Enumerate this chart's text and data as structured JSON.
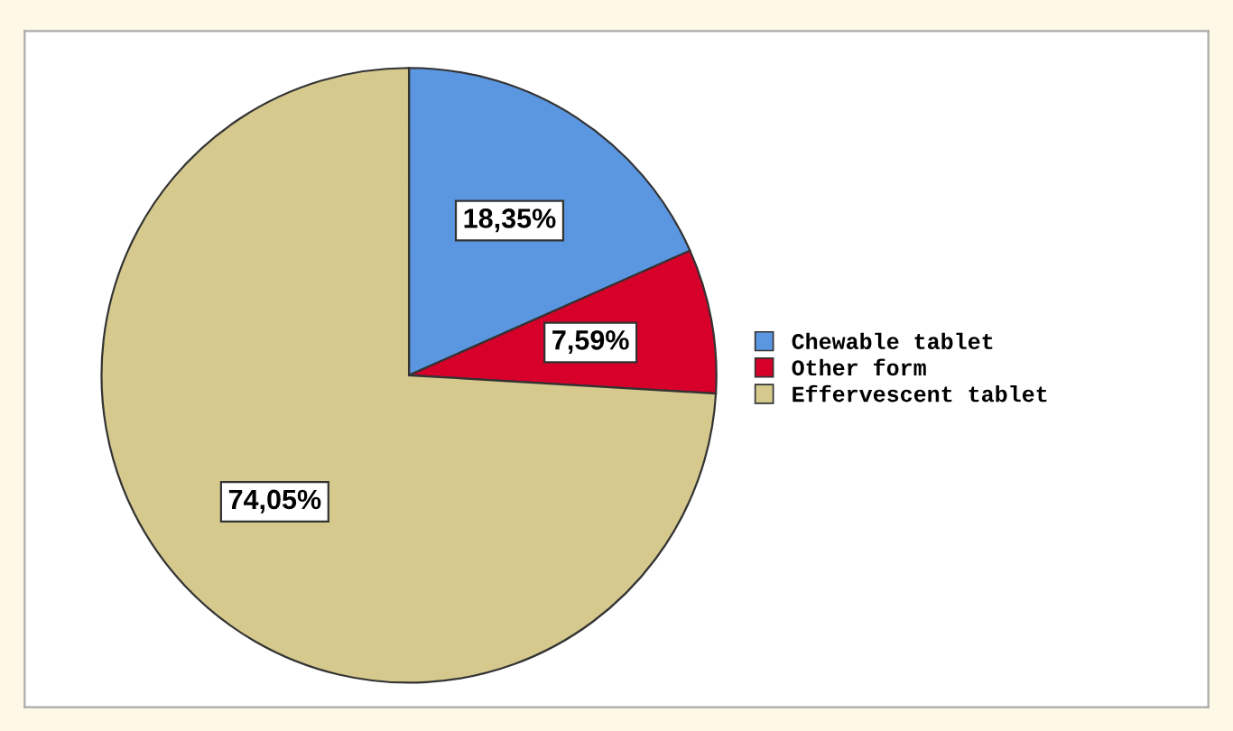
{
  "chart_data": {
    "type": "pie",
    "categories": [
      "Chewable tablet",
      "Other form",
      "Effervescent tablet"
    ],
    "values": [
      18.35,
      7.59,
      74.05
    ],
    "colors": [
      "#5b96e0",
      "#d6002a",
      "#d5c98e"
    ],
    "value_labels": [
      "18,35%",
      "7,59%",
      "74,05%"
    ],
    "legend": "right"
  }
}
